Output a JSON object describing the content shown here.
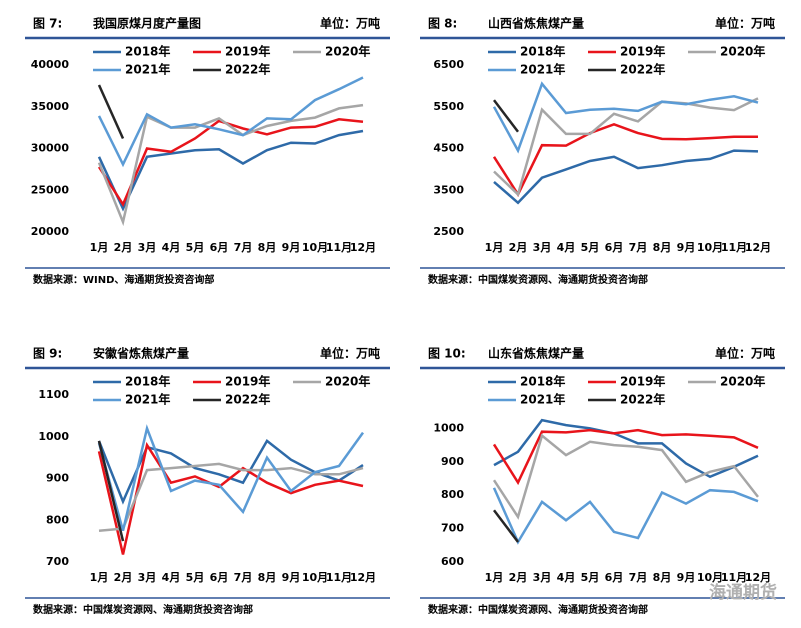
{
  "chart_data": [
    {
      "type": "line",
      "figure": "图 7:",
      "title": "我国原煤月度产量图",
      "unit": "单位：万吨",
      "source": "数据来源：WIND、海通期货投资咨询部",
      "categories": [
        "1月",
        "2月",
        "3月",
        "4月",
        "5月",
        "6月",
        "7月",
        "8月",
        "9月",
        "10月",
        "11月",
        "12月"
      ],
      "ylim": [
        20000,
        40000
      ],
      "yticks": [
        20000,
        25000,
        30000,
        35000,
        40000
      ],
      "series": [
        {
          "name": "2018年",
          "color": "#2e6aa8",
          "values": [
            29000,
            22800,
            29000,
            29400,
            29800,
            29900,
            28200,
            29800,
            30700,
            30600,
            31600,
            32100
          ]
        },
        {
          "name": "2019年",
          "color": "#e8141b",
          "values": [
            27800,
            23300,
            30000,
            29600,
            31200,
            33300,
            32400,
            31700,
            32500,
            32600,
            33500,
            33200
          ]
        },
        {
          "name": "2020年",
          "color": "#a6a6a6",
          "values": [
            28300,
            21200,
            33800,
            32500,
            32500,
            33600,
            31600,
            32700,
            33300,
            33700,
            34800,
            35200
          ]
        },
        {
          "name": "2021年",
          "color": "#5b9bd5",
          "values": [
            33900,
            28100,
            34100,
            32500,
            32900,
            32300,
            31600,
            33600,
            33500,
            35800,
            37100,
            38500
          ]
        },
        {
          "name": "2022年",
          "color": "#262626",
          "values": [
            37600,
            31200,
            null,
            null,
            null,
            null,
            null,
            null,
            null,
            null,
            null,
            null
          ]
        }
      ]
    },
    {
      "type": "line",
      "figure": "图 8:",
      "title": "山西省炼焦煤产量",
      "unit": "单位：万吨",
      "source": "数据来源：中国煤炭资源网、海通期货投资咨询部",
      "categories": [
        "1月",
        "2月",
        "3月",
        "4月",
        "5月",
        "6月",
        "7月",
        "8月",
        "9月",
        "10月",
        "11月",
        "12月"
      ],
      "ylim": [
        2500,
        6500
      ],
      "yticks": [
        2500,
        3500,
        4500,
        5500,
        6500
      ],
      "series": [
        {
          "name": "2018年",
          "color": "#2e6aa8",
          "values": [
            3700,
            3200,
            3800,
            4000,
            4200,
            4300,
            4030,
            4100,
            4200,
            4250,
            4450,
            4430
          ]
        },
        {
          "name": "2019年",
          "color": "#e8141b",
          "values": [
            4300,
            3400,
            4580,
            4570,
            4870,
            5080,
            4870,
            4730,
            4720,
            4750,
            4780,
            4780
          ]
        },
        {
          "name": "2020年",
          "color": "#a6a6a6",
          "values": [
            3950,
            3400,
            5430,
            4850,
            4850,
            5330,
            5150,
            5620,
            5580,
            5480,
            5420,
            5700
          ]
        },
        {
          "name": "2021年",
          "color": "#5b9bd5",
          "values": [
            5500,
            4450,
            6050,
            5350,
            5430,
            5450,
            5400,
            5620,
            5560,
            5670,
            5750,
            5600
          ]
        },
        {
          "name": "2022年",
          "color": "#262626",
          "values": [
            5660,
            4900,
            null,
            null,
            null,
            null,
            null,
            null,
            null,
            null,
            null,
            null
          ]
        }
      ]
    },
    {
      "type": "line",
      "figure": "图 9:",
      "title": "安徽省炼焦煤产量",
      "unit": "单位：万吨",
      "source": "数据来源：中国煤炭资源网、海通期货投资咨询部",
      "categories": [
        "1月",
        "2月",
        "3月",
        "4月",
        "5月",
        "6月",
        "7月",
        "8月",
        "9月",
        "10月",
        "11月",
        "12月"
      ],
      "ylim": [
        700,
        1100
      ],
      "yticks": [
        700,
        800,
        900,
        1000,
        1100
      ],
      "series": [
        {
          "name": "2018年",
          "color": "#2e6aa8",
          "values": [
            990,
            845,
            975,
            960,
            925,
            910,
            890,
            990,
            945,
            915,
            895,
            932
          ]
        },
        {
          "name": "2019年",
          "color": "#e8141b",
          "values": [
            965,
            718,
            980,
            890,
            905,
            880,
            925,
            890,
            865,
            885,
            895,
            882
          ]
        },
        {
          "name": "2020年",
          "color": "#a6a6a6",
          "values": [
            775,
            780,
            920,
            925,
            930,
            935,
            920,
            920,
            925,
            910,
            910,
            925
          ]
        },
        {
          "name": "2021年",
          "color": "#5b9bd5",
          "values": [
            985,
            775,
            1020,
            870,
            895,
            885,
            820,
            950,
            870,
            915,
            930,
            1010
          ]
        },
        {
          "name": "2022年",
          "color": "#262626",
          "values": [
            990,
            750,
            null,
            null,
            null,
            null,
            null,
            null,
            null,
            null,
            null,
            null
          ]
        }
      ]
    },
    {
      "type": "line",
      "figure": "图 10:",
      "title": "山东省炼焦煤产量",
      "unit": "单位：万吨",
      "source": "数据来源：中国煤炭资源网、海通期货投资咨询部",
      "watermark": "海通期货",
      "categories": [
        "1月",
        "2月",
        "3月",
        "4月",
        "5月",
        "6月",
        "7月",
        "8月",
        "9月",
        "10月",
        "11月",
        "12月"
      ],
      "ylim": [
        600,
        1100
      ],
      "yticks": [
        600,
        700,
        800,
        900,
        1000
      ],
      "series": [
        {
          "name": "2018年",
          "color": "#2e6aa8",
          "values": [
            890,
            930,
            1025,
            1010,
            1000,
            985,
            955,
            955,
            895,
            855,
            885,
            918
          ]
        },
        {
          "name": "2019年",
          "color": "#e8141b",
          "values": [
            952,
            838,
            990,
            988,
            995,
            985,
            995,
            980,
            982,
            978,
            973,
            942
          ]
        },
        {
          "name": "2020年",
          "color": "#a6a6a6",
          "values": [
            845,
            735,
            978,
            920,
            960,
            950,
            945,
            935,
            840,
            870,
            887,
            795
          ]
        },
        {
          "name": "2021年",
          "color": "#5b9bd5",
          "values": [
            822,
            660,
            780,
            725,
            780,
            690,
            672,
            808,
            775,
            815,
            810,
            782
          ]
        },
        {
          "name": "2022年",
          "color": "#262626",
          "values": [
            755,
            660,
            null,
            null,
            null,
            null,
            null,
            null,
            null,
            null,
            null,
            null
          ]
        }
      ]
    }
  ]
}
